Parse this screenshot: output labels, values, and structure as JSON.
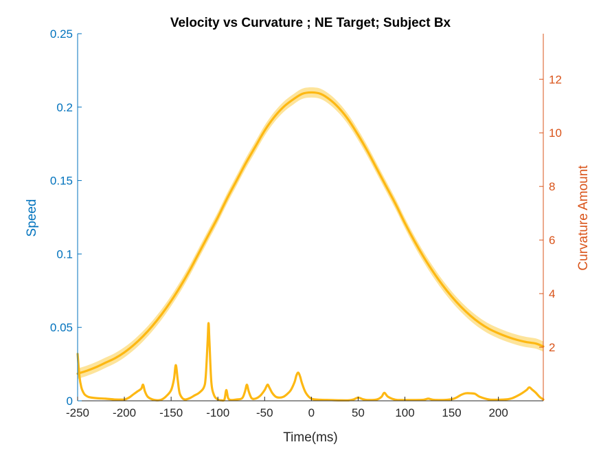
{
  "chart_data": {
    "type": "line",
    "title": "Velocity vs Curvature ; NE Target; Subject Bx",
    "xlabel": "Time(ms)",
    "ylabel_left": "Speed",
    "ylabel_right": "Curvature Amount",
    "xlim": [
      -250,
      248
    ],
    "ylim_left": [
      0,
      0.25
    ],
    "ylim_right": [
      0,
      13.7
    ],
    "x_ticks": [
      -250,
      -200,
      -150,
      -100,
      -50,
      0,
      50,
      100,
      150,
      200
    ],
    "y_ticks_left": [
      0,
      0.05,
      0.1,
      0.15,
      0.2,
      0.25
    ],
    "y_ticks_right": [
      2,
      4,
      6,
      8,
      10,
      12
    ],
    "colors": {
      "line": "#FDB813",
      "band": "#FDDF8A",
      "left_axis": "#0072BD",
      "right_axis": "#D95319",
      "x_axis": "#262626"
    },
    "grid": false,
    "series": [
      {
        "axis": "left",
        "x": [
          -250,
          -240,
          -230,
          -220,
          -210,
          -200,
          -190,
          -180,
          -170,
          -160,
          -150,
          -140,
          -130,
          -120,
          -110,
          -100,
          -90,
          -80,
          -70,
          -60,
          -50,
          -40,
          -30,
          -20,
          -10,
          0,
          10,
          20,
          30,
          40,
          50,
          60,
          70,
          80,
          90,
          100,
          110,
          120,
          130,
          140,
          150,
          160,
          170,
          180,
          190,
          200,
          210,
          220,
          230,
          240,
          248
        ],
        "values": [
          0.0185,
          0.0205,
          0.023,
          0.026,
          0.029,
          0.033,
          0.038,
          0.044,
          0.051,
          0.059,
          0.068,
          0.078,
          0.089,
          0.101,
          0.113,
          0.125,
          0.138,
          0.15,
          0.162,
          0.173,
          0.184,
          0.193,
          0.2,
          0.205,
          0.209,
          0.21,
          0.209,
          0.205,
          0.199,
          0.191,
          0.181,
          0.17,
          0.158,
          0.146,
          0.134,
          0.121,
          0.109,
          0.098,
          0.088,
          0.079,
          0.071,
          0.064,
          0.058,
          0.053,
          0.049,
          0.046,
          0.0435,
          0.0415,
          0.04,
          0.039,
          0.037
        ],
        "band_halfwidth": [
          0.0035,
          0.0035,
          0.0035,
          0.0035,
          0.0035,
          0.0035,
          0.0035,
          0.0035,
          0.0035,
          0.0035,
          0.0035,
          0.0035,
          0.0035,
          0.0035,
          0.0035,
          0.0035,
          0.0035,
          0.0035,
          0.0035,
          0.0035,
          0.0035,
          0.0035,
          0.0035,
          0.0035,
          0.0035,
          0.0035,
          0.0035,
          0.0035,
          0.0035,
          0.0035,
          0.0035,
          0.0035,
          0.0035,
          0.0035,
          0.0035,
          0.0035,
          0.0035,
          0.0035,
          0.0035,
          0.0035,
          0.0035,
          0.0035,
          0.0035,
          0.0035,
          0.0035,
          0.0035,
          0.0035,
          0.0035,
          0.0035,
          0.0035,
          0.0035
        ]
      },
      {
        "axis": "right",
        "x": [
          -250,
          -248,
          -246,
          -244,
          -242,
          -238,
          -230,
          -220,
          -210,
          -200,
          -195,
          -190,
          -186,
          -182,
          -180,
          -178,
          -175,
          -170,
          -165,
          -160,
          -155,
          -150,
          -147,
          -145,
          -143,
          -141,
          -138,
          -135,
          -130,
          -125,
          -120,
          -115,
          -113,
          -111,
          -110,
          -109,
          -107,
          -104,
          -100,
          -96,
          -93,
          -91,
          -89,
          -86,
          -80,
          -74,
          -71,
          -69,
          -67,
          -64,
          -60,
          -55,
          -50,
          -47,
          -45,
          -42,
          -38,
          -34,
          -30,
          -26,
          -22,
          -18,
          -16,
          -14,
          -12,
          -10,
          -6,
          0,
          10,
          20,
          30,
          40,
          45,
          50,
          55,
          60,
          70,
          75,
          78,
          82,
          90,
          100,
          110,
          120,
          125,
          130,
          140,
          150,
          155,
          160,
          165,
          170,
          175,
          180,
          190,
          200,
          210,
          215,
          220,
          225,
          230,
          233,
          236,
          240,
          244,
          248
        ],
        "values": [
          1.75,
          0.9,
          0.5,
          0.32,
          0.22,
          0.14,
          0.1,
          0.08,
          0.05,
          0.05,
          0.12,
          0.25,
          0.35,
          0.45,
          0.6,
          0.35,
          0.15,
          0.05,
          0.02,
          0.05,
          0.18,
          0.4,
          0.8,
          1.33,
          0.8,
          0.3,
          0.1,
          0.05,
          0.1,
          0.2,
          0.3,
          0.5,
          0.9,
          2.2,
          2.9,
          2.2,
          0.7,
          0.2,
          0.05,
          0.02,
          0.05,
          0.4,
          0.1,
          0.03,
          0.05,
          0.1,
          0.35,
          0.6,
          0.35,
          0.1,
          0.08,
          0.18,
          0.4,
          0.6,
          0.5,
          0.3,
          0.15,
          0.12,
          0.15,
          0.25,
          0.4,
          0.7,
          0.95,
          1.05,
          0.9,
          0.65,
          0.3,
          0.08,
          0.04,
          0.03,
          0.02,
          0.02,
          0.05,
          0.12,
          0.06,
          0.03,
          0.05,
          0.15,
          0.3,
          0.15,
          0.04,
          0.03,
          0.03,
          0.04,
          0.08,
          0.04,
          0.03,
          0.06,
          0.12,
          0.22,
          0.28,
          0.28,
          0.26,
          0.15,
          0.05,
          0.04,
          0.06,
          0.1,
          0.18,
          0.28,
          0.4,
          0.5,
          0.42,
          0.3,
          0.15,
          0.05
        ]
      }
    ]
  }
}
